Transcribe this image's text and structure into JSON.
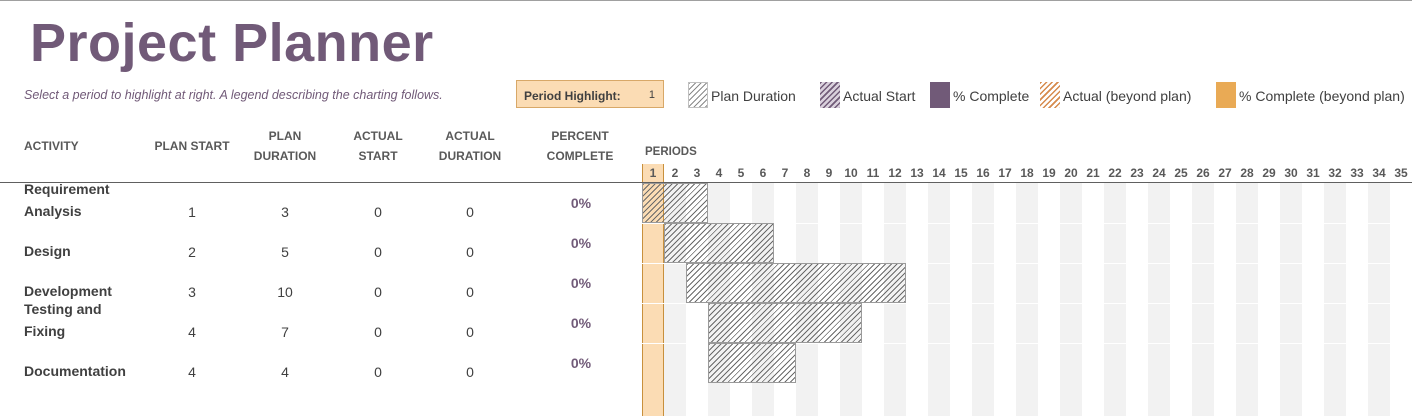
{
  "title": "Project Planner",
  "subtitle": "Select a period to highlight at right.  A legend describing the charting follows.",
  "period_highlight": {
    "label": "Period Highlight:",
    "value": "1"
  },
  "legend": [
    {
      "label": "Plan Duration",
      "icon": "plan-duration-swatch"
    },
    {
      "label": "Actual Start",
      "icon": "actual-start-swatch"
    },
    {
      "label": "% Complete",
      "icon": "percent-complete-swatch"
    },
    {
      "label": "Actual (beyond plan)",
      "icon": "actual-beyond-swatch"
    },
    {
      "label": "% Complete (beyond plan)",
      "icon": "percent-complete-beyond-swatch"
    }
  ],
  "columns": {
    "activity": "ACTIVITY",
    "plan_start": "PLAN START",
    "plan_duration_1": "PLAN",
    "plan_duration_2": "DURATION",
    "actual_start_1": "ACTUAL",
    "actual_start_2": "START",
    "actual_duration_1": "ACTUAL",
    "actual_duration_2": "DURATION",
    "percent_complete_1": "PERCENT",
    "percent_complete_2": "COMPLETE",
    "periods": "PERIODS"
  },
  "periods": [
    "1",
    "2",
    "3",
    "4",
    "5",
    "6",
    "7",
    "8",
    "9",
    "10",
    "11",
    "12",
    "13",
    "14",
    "15",
    "16",
    "17",
    "18",
    "19",
    "20",
    "21",
    "22",
    "23",
    "24",
    "25",
    "26",
    "27",
    "28",
    "29",
    "30",
    "31",
    "32",
    "33",
    "34",
    "35"
  ],
  "highlighted_period": 1,
  "activities": [
    {
      "name_line1": "Requirement",
      "name_line2": "Analysis",
      "plan_start": "1",
      "plan_duration": "3",
      "actual_start": "0",
      "actual_duration": "0",
      "percent": "0%"
    },
    {
      "name_line1": "",
      "name_line2": "Design",
      "plan_start": "2",
      "plan_duration": "5",
      "actual_start": "0",
      "actual_duration": "0",
      "percent": "0%"
    },
    {
      "name_line1": "",
      "name_line2": "Development",
      "plan_start": "3",
      "plan_duration": "10",
      "actual_start": "0",
      "actual_duration": "0",
      "percent": "0%"
    },
    {
      "name_line1": "Testing and",
      "name_line2": "Fixing",
      "plan_start": "4",
      "plan_duration": "7",
      "actual_start": "0",
      "actual_duration": "0",
      "percent": "0%"
    },
    {
      "name_line1": "",
      "name_line2": "Documentation",
      "plan_start": "4",
      "plan_duration": "4",
      "actual_start": "0",
      "actual_duration": "0",
      "percent": "0%"
    }
  ],
  "colors": {
    "accent": "#715a78",
    "highlight": "#fbdcb4",
    "complete_beyond": "#e9aa55",
    "stripe": "#f2f2f2"
  }
}
